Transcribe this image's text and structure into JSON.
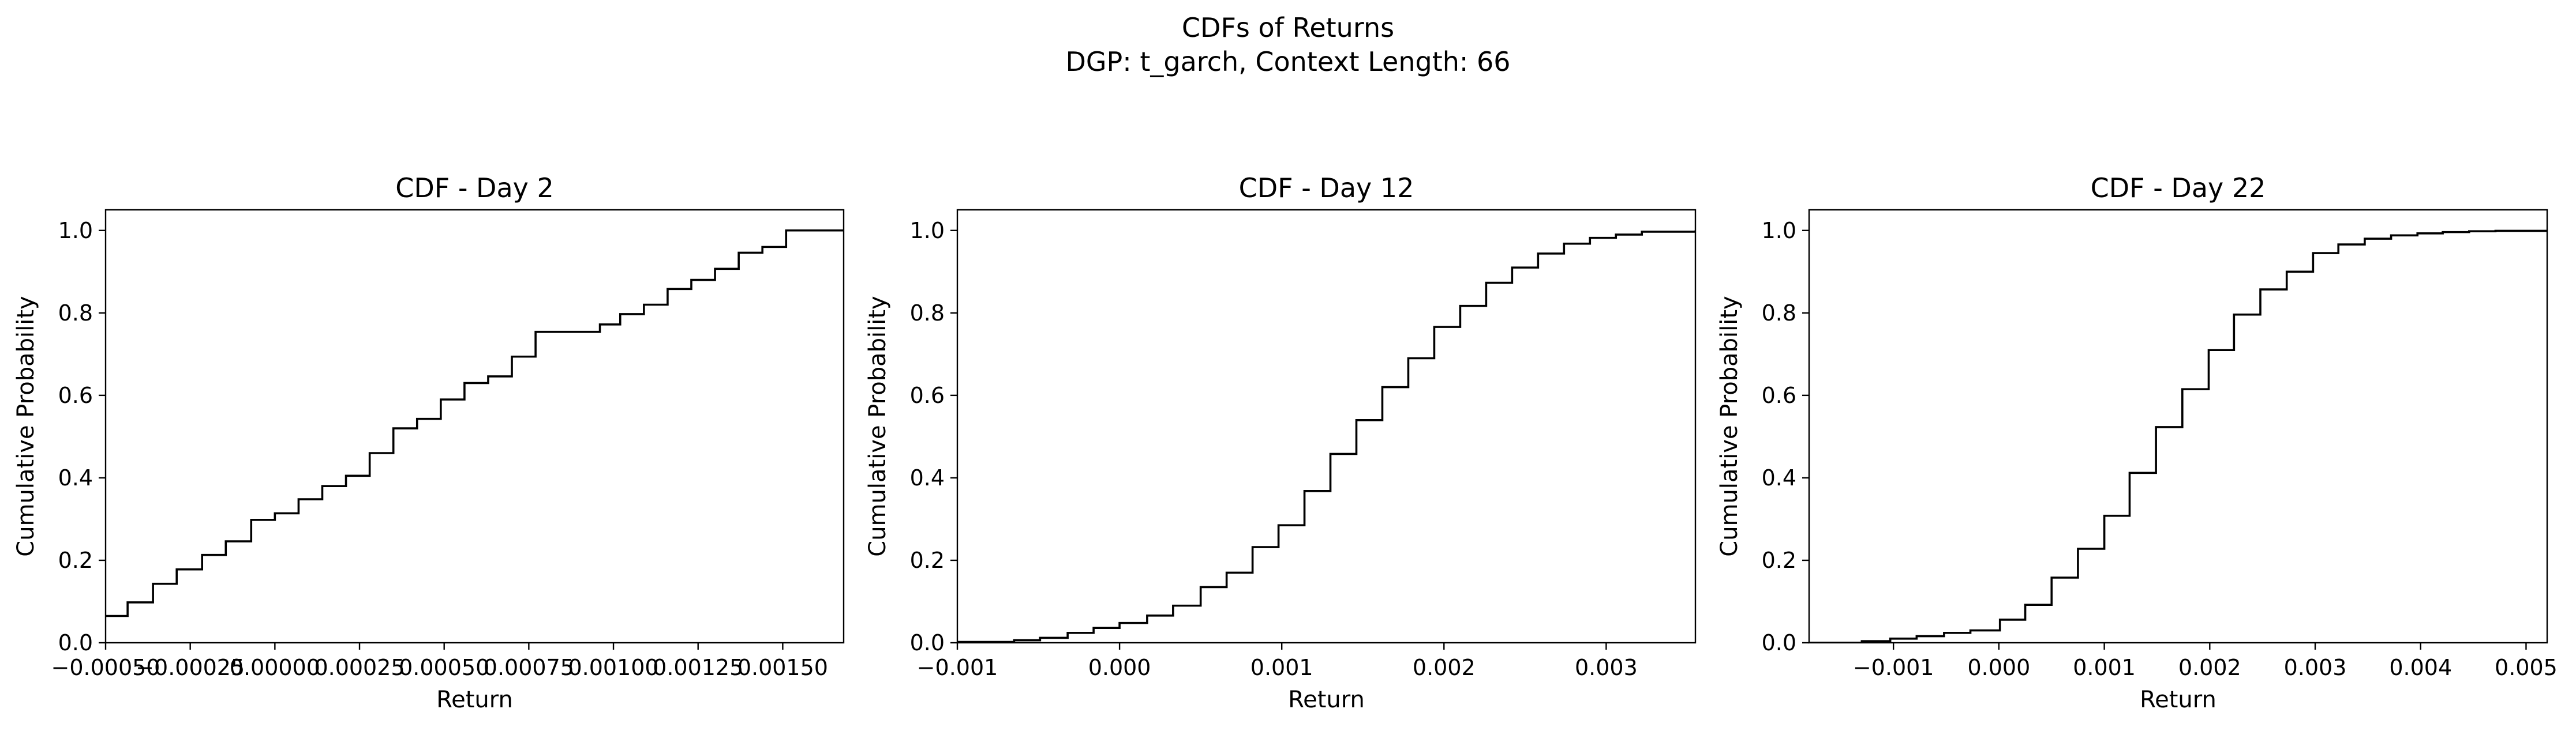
{
  "figure": {
    "suptitle_line1": "CDFs of Returns",
    "suptitle_line2": "DGP: t_garch, Context Length: 66"
  },
  "chart_data": [
    {
      "type": "line",
      "step": true,
      "title": "CDF - Day 2",
      "xlabel": "Return",
      "ylabel": "Cumulative Probability",
      "xlim": [
        -0.0005,
        0.00168
      ],
      "ylim": [
        0,
        1.05
      ],
      "xticks": [
        -0.0005,
        -0.00025,
        0.0,
        0.00025,
        0.0005,
        0.00075,
        0.001,
        0.00125,
        0.0015
      ],
      "xtick_labels": [
        "−0.00050",
        "−0.00025",
        "0.00000",
        "0.00025",
        "0.00050",
        "0.00075",
        "0.00100",
        "0.00125",
        "0.00150"
      ],
      "yticks": [
        0,
        0.2,
        0.4,
        0.6,
        0.8,
        1.0
      ],
      "ytick_labels": [
        "0.0",
        "0.2",
        "0.4",
        "0.6",
        "0.8",
        "1.0"
      ],
      "grid": false,
      "line_color": "#000000",
      "x": [
        -0.0005,
        -0.000435,
        -0.00036,
        -0.00029,
        -0.000215,
        -0.000145,
        -7e-05,
        0.0,
        7e-05,
        0.00014,
        0.00021,
        0.00028,
        0.00035,
        0.00042,
        0.00049,
        0.00056,
        0.00063,
        0.0007,
        0.00077,
        0.00083,
        0.00096,
        0.00102,
        0.00109,
        0.00116,
        0.00123,
        0.0013,
        0.00137,
        0.00144,
        0.00151,
        0.00158,
        0.00168
      ],
      "y": [
        0.065,
        0.098,
        0.143,
        0.178,
        0.213,
        0.246,
        0.298,
        0.314,
        0.348,
        0.38,
        0.405,
        0.46,
        0.52,
        0.543,
        0.59,
        0.63,
        0.646,
        0.694,
        0.754,
        0.754,
        0.772,
        0.797,
        0.82,
        0.858,
        0.88,
        0.907,
        0.946,
        0.96,
        1.0,
        1.0,
        1.0
      ]
    },
    {
      "type": "line",
      "step": true,
      "title": "CDF - Day 12",
      "xlabel": "Return",
      "ylabel": "Cumulative Probability",
      "xlim": [
        -0.001,
        0.00355
      ],
      "ylim": [
        0,
        1.05
      ],
      "xticks": [
        -0.001,
        0.0,
        0.001,
        0.002,
        0.003
      ],
      "xtick_labels": [
        "−0.001",
        "0.000",
        "0.001",
        "0.002",
        "0.003"
      ],
      "yticks": [
        0,
        0.2,
        0.4,
        0.6,
        0.8,
        1.0
      ],
      "ytick_labels": [
        "0.0",
        "0.2",
        "0.4",
        "0.6",
        "0.8",
        "1.0"
      ],
      "grid": false,
      "line_color": "#000000",
      "x": [
        -0.001,
        -0.00065,
        -0.00049,
        -0.00032,
        -0.00016,
        0.0,
        0.00017,
        0.00033,
        0.0005,
        0.00066,
        0.00082,
        0.00098,
        0.00114,
        0.0013,
        0.00146,
        0.00162,
        0.00178,
        0.00194,
        0.0021,
        0.00226,
        0.00242,
        0.00258,
        0.00274,
        0.0029,
        0.00306,
        0.00322,
        0.00355
      ],
      "y": [
        0.002,
        0.006,
        0.012,
        0.024,
        0.036,
        0.048,
        0.066,
        0.09,
        0.135,
        0.17,
        0.232,
        0.285,
        0.368,
        0.458,
        0.54,
        0.62,
        0.69,
        0.766,
        0.817,
        0.873,
        0.91,
        0.944,
        0.968,
        0.982,
        0.99,
        0.997,
        1.0
      ]
    },
    {
      "type": "line",
      "step": true,
      "title": "CDF - Day 22",
      "xlabel": "Return",
      "ylabel": "Cumulative Probability",
      "xlim": [
        -0.0018,
        0.0052
      ],
      "ylim": [
        0,
        1.05
      ],
      "xticks": [
        -0.001,
        0.0,
        0.001,
        0.002,
        0.003,
        0.004,
        0.005
      ],
      "xtick_labels": [
        "−0.001",
        "0.000",
        "0.001",
        "0.002",
        "0.003",
        "0.004",
        "0.005"
      ],
      "yticks": [
        0,
        0.2,
        0.4,
        0.6,
        0.8,
        1.0
      ],
      "ytick_labels": [
        "0.0",
        "0.2",
        "0.4",
        "0.6",
        "0.8",
        "1.0"
      ],
      "grid": false,
      "line_color": "#000000",
      "x": [
        -0.0018,
        -0.0013,
        -0.00103,
        -0.00078,
        -0.00052,
        -0.00027,
        1e-05,
        0.00025,
        0.0005,
        0.00075,
        0.001,
        0.00124,
        0.00149,
        0.00174,
        0.00199,
        0.00223,
        0.00248,
        0.00273,
        0.00298,
        0.00322,
        0.00347,
        0.00372,
        0.00397,
        0.00421,
        0.00446,
        0.00471,
        0.0052
      ],
      "y": [
        0.0,
        0.004,
        0.01,
        0.016,
        0.024,
        0.03,
        0.056,
        0.092,
        0.158,
        0.228,
        0.308,
        0.412,
        0.523,
        0.615,
        0.71,
        0.796,
        0.857,
        0.9,
        0.945,
        0.966,
        0.98,
        0.988,
        0.993,
        0.996,
        0.998,
        0.999,
        1.0
      ]
    }
  ]
}
